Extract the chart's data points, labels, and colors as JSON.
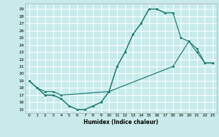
{
  "xlabel": "Humidex (Indice chaleur)",
  "bg_color": "#c8eaea",
  "grid_color": "#ffffff",
  "line_color": "#1a7a6e",
  "xlim": [
    -0.5,
    23.5
  ],
  "ylim": [
    14.5,
    29.8
  ],
  "yticks": [
    15,
    16,
    17,
    18,
    19,
    20,
    21,
    22,
    23,
    24,
    25,
    26,
    27,
    28,
    29
  ],
  "xticks": [
    0,
    1,
    2,
    3,
    4,
    5,
    6,
    7,
    8,
    9,
    10,
    11,
    12,
    13,
    14,
    15,
    16,
    17,
    18,
    19,
    20,
    21,
    22,
    23
  ],
  "line1_x": [
    0,
    1,
    2,
    3,
    4,
    5,
    6,
    7,
    8,
    9,
    10,
    11,
    12,
    13,
    14,
    15,
    16,
    17,
    18
  ],
  "line1_y": [
    19,
    18,
    17,
    17,
    16.5,
    15.5,
    15,
    15,
    15.5,
    16,
    17.5,
    21,
    23,
    25.5,
    27,
    29,
    29,
    28.5,
    28.5
  ],
  "line2_x": [
    0,
    1,
    2,
    3,
    4,
    5,
    6,
    7,
    8,
    9,
    10,
    11,
    12,
    13,
    14,
    15,
    16,
    17,
    18,
    19,
    20,
    21,
    22,
    23
  ],
  "line2_y": [
    19,
    18,
    17,
    17,
    16.5,
    15.5,
    15,
    15,
    15.5,
    16,
    17.5,
    21,
    23,
    25.5,
    27,
    29,
    29,
    28.5,
    28.5,
    25,
    24.5,
    23,
    21.5,
    21.5
  ],
  "line3_x": [
    0,
    1,
    2,
    3,
    4,
    10,
    18,
    20,
    21,
    22,
    23
  ],
  "line3_y": [
    19,
    18,
    17.5,
    17.5,
    17,
    17.5,
    21,
    24.5,
    23.5,
    21.5,
    21.5
  ],
  "tick_fontsize": 4.5,
  "xlabel_fontsize": 5.5
}
